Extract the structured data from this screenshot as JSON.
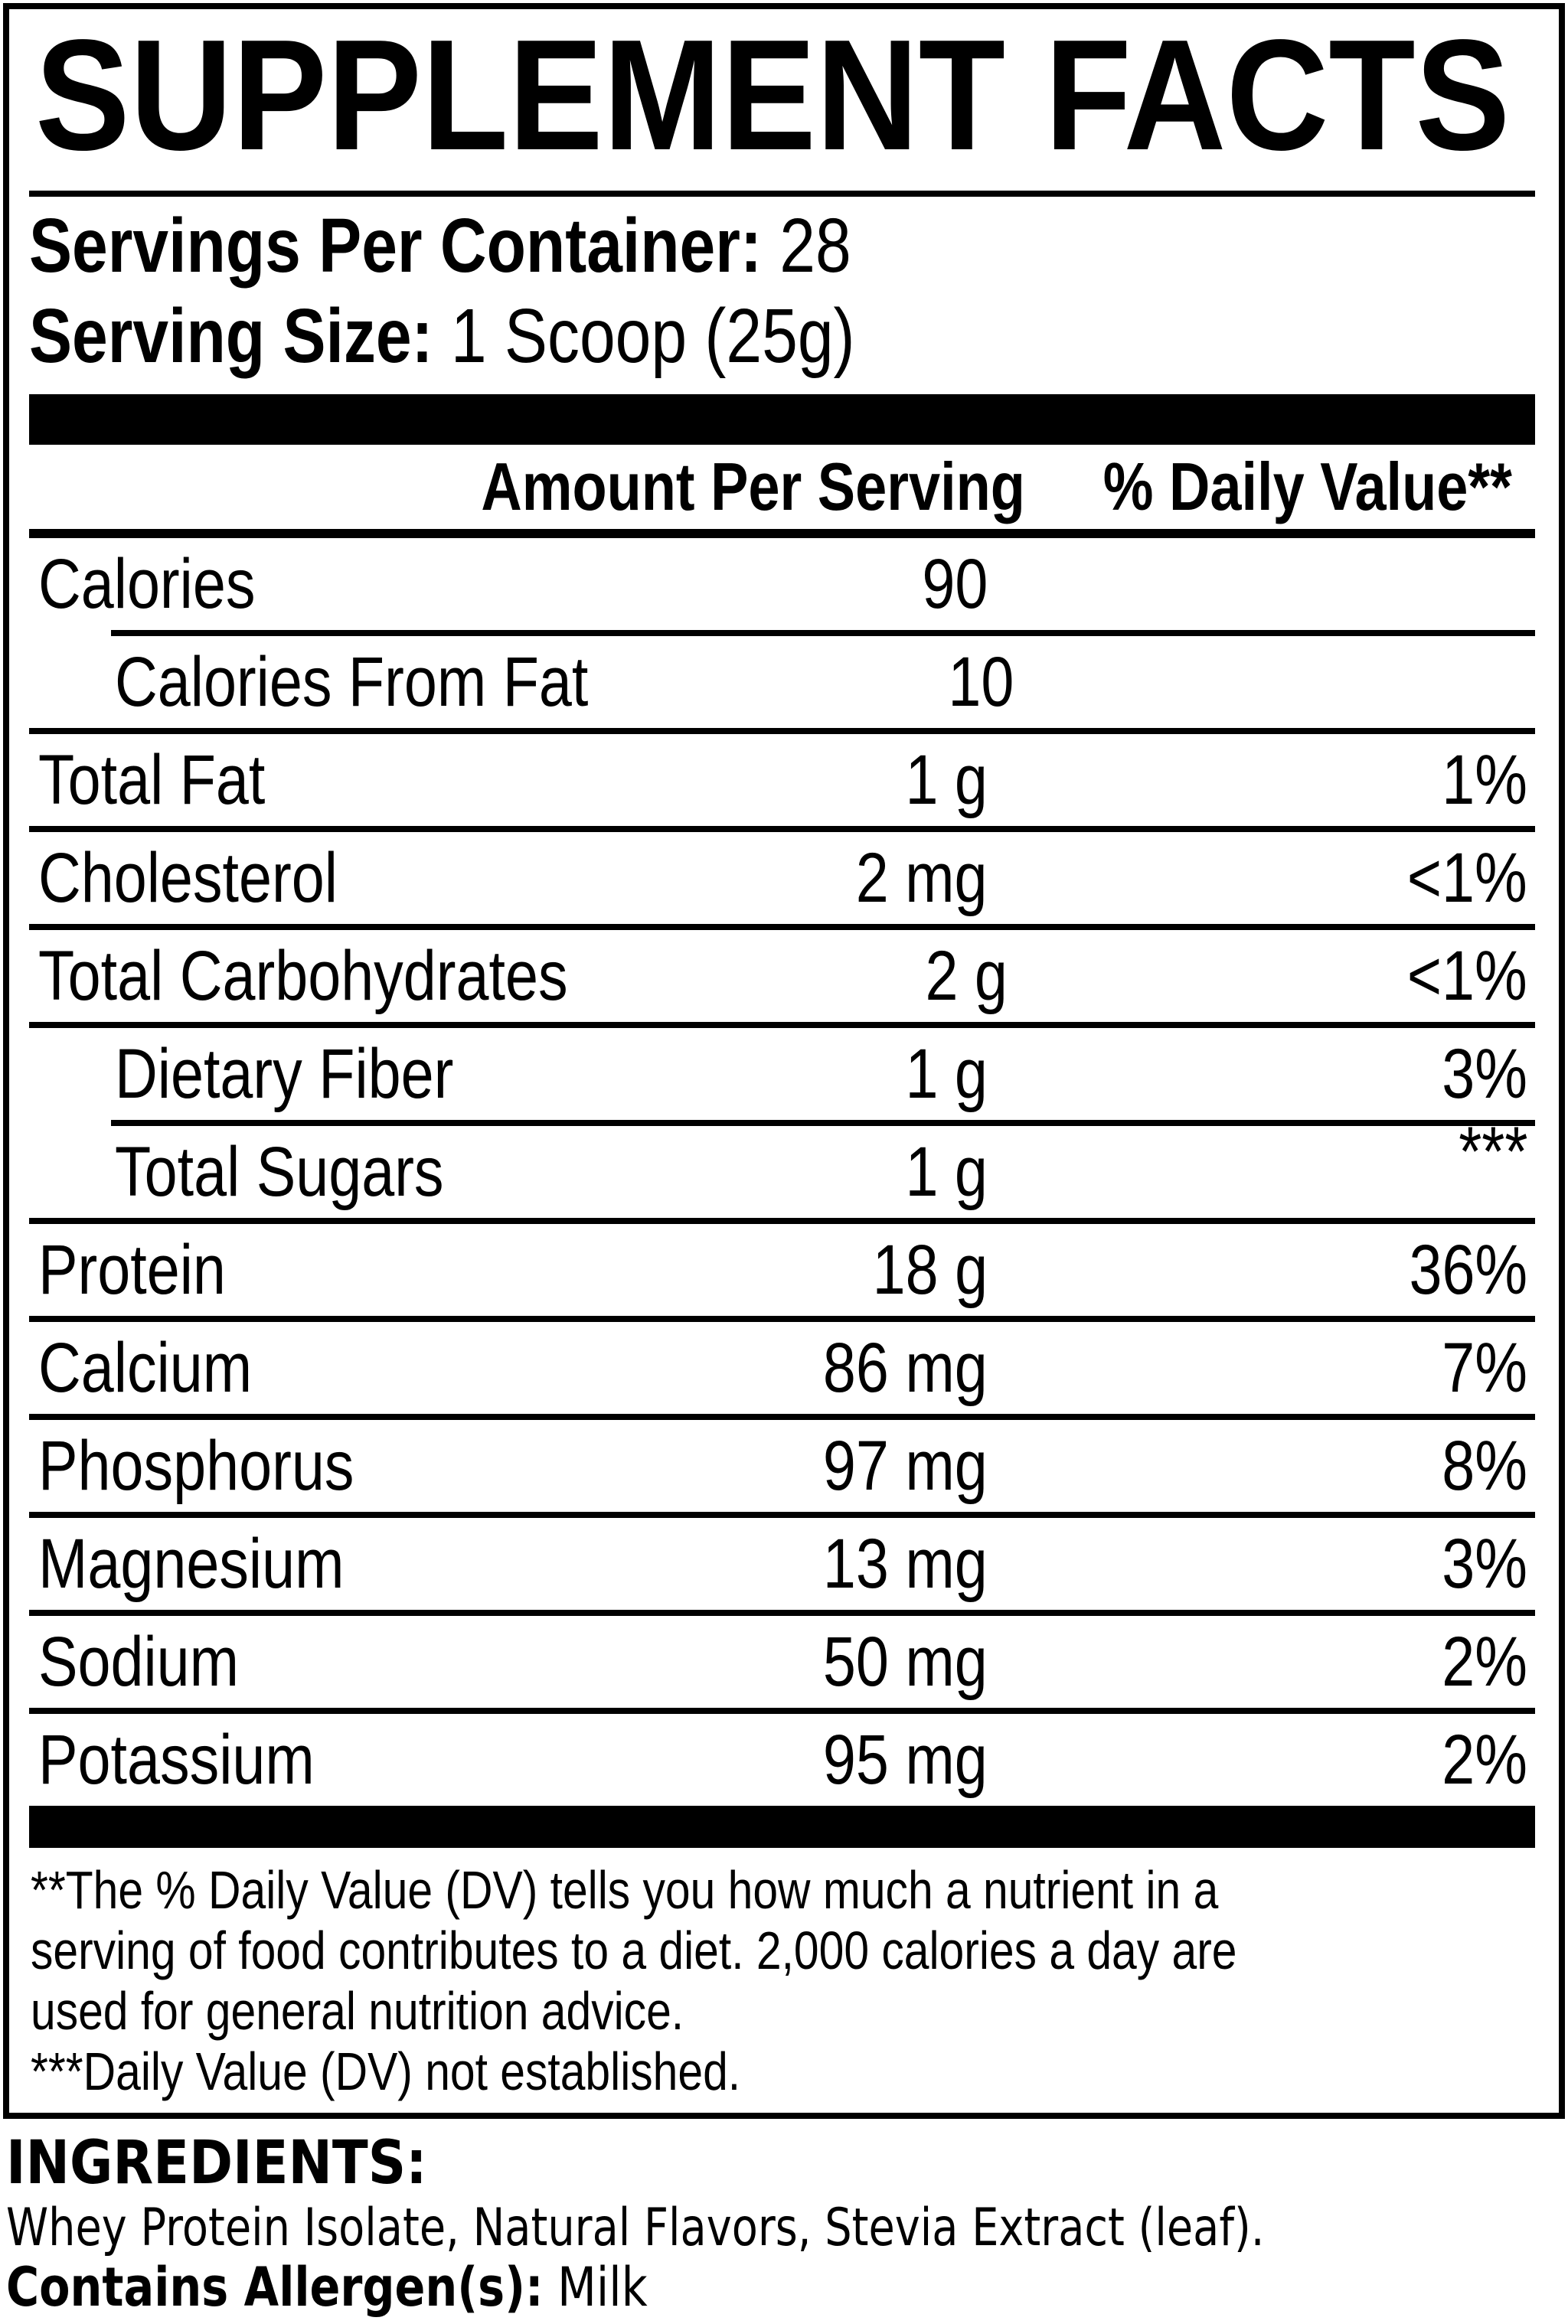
{
  "colors": {
    "ink": "#000000",
    "background": "#ffffff"
  },
  "label": {
    "title": "SUPPLEMENT FACTS",
    "servings_per_container": {
      "label": "Servings Per Container:",
      "value": "28"
    },
    "serving_size": {
      "label": "Serving Size:",
      "value": "1 Scoop (25g)"
    },
    "columns": {
      "amount": "Amount Per Serving",
      "daily_value": "% Daily Value**"
    },
    "rows": [
      {
        "name": "Calories",
        "amount": "90",
        "dv": "",
        "indent": false
      },
      {
        "name": "Calories From Fat",
        "amount": "10",
        "dv": "",
        "indent": true
      },
      {
        "name": "Total Fat",
        "amount": "1 g",
        "dv": "1%",
        "indent": false
      },
      {
        "name": "Cholesterol",
        "amount": "2 mg",
        "dv": "<1%",
        "indent": false
      },
      {
        "name": "Total Carbohydrates",
        "amount": "2 g",
        "dv": "<1%",
        "indent": false
      },
      {
        "name": "Dietary Fiber",
        "amount": "1 g",
        "dv": "3%",
        "indent": true
      },
      {
        "name": "Total Sugars",
        "amount": "1 g",
        "dv": "***",
        "indent": true
      },
      {
        "name": "Protein",
        "amount": "18 g",
        "dv": "36%",
        "indent": false
      },
      {
        "name": "Calcium",
        "amount": "86 mg",
        "dv": "7%",
        "indent": false
      },
      {
        "name": "Phosphorus",
        "amount": "97 mg",
        "dv": "8%",
        "indent": false
      },
      {
        "name": "Magnesium",
        "amount": "13 mg",
        "dv": "3%",
        "indent": false
      },
      {
        "name": "Sodium",
        "amount": "50 mg",
        "dv": "2%",
        "indent": false
      },
      {
        "name": "Potassium",
        "amount": "95 mg",
        "dv": "2%",
        "indent": false
      }
    ],
    "footnote_lines": [
      "**The % Daily Value (DV) tells you how much a nutrient in a",
      "serving of food contributes to a diet. 2,000 calories a day are",
      "used for general nutrition advice.",
      "***Daily Value (DV) not established."
    ]
  },
  "ingredients": {
    "heading": "INGREDIENTS:",
    "list": "Whey Protein Isolate, Natural Flavors, Stevia Extract (leaf).",
    "allergen_label": "Contains Allergen(s):",
    "allergen_value": "Milk"
  }
}
